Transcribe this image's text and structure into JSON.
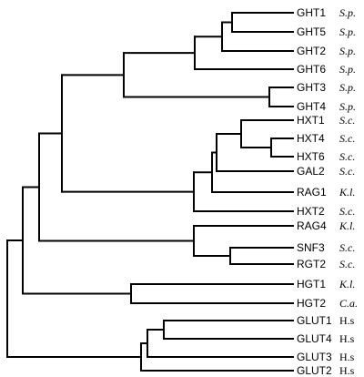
{
  "figure": {
    "type": "phylogenetic-tree"
  },
  "leaves": [
    {
      "gene": "GHT1",
      "species": "S.p.",
      "italic": true
    },
    {
      "gene": "GHT5",
      "species": "S.p.",
      "italic": true
    },
    {
      "gene": "GHT2",
      "species": "S.p.",
      "italic": true
    },
    {
      "gene": "GHT6",
      "species": "S.p.",
      "italic": true
    },
    {
      "gene": "GHT3",
      "species": "S.p.",
      "italic": true
    },
    {
      "gene": "GHT4",
      "species": "S.p.",
      "italic": true
    },
    {
      "gene": "HXT1",
      "species": "S.c.",
      "italic": true
    },
    {
      "gene": "HXT4",
      "species": "S.c.",
      "italic": true
    },
    {
      "gene": "HXT6",
      "species": "S.c.",
      "italic": true
    },
    {
      "gene": "GAL2",
      "species": "S.c.",
      "italic": true
    },
    {
      "gene": "RAG1",
      "species": "K.l.",
      "italic": true
    },
    {
      "gene": "HXT2",
      "species": "S.c.",
      "italic": true
    },
    {
      "gene": "RAG4",
      "species": "K.l.",
      "italic": true
    },
    {
      "gene": "SNF3",
      "species": "S.c.",
      "italic": true
    },
    {
      "gene": "RGT2",
      "species": "S.c.",
      "italic": true
    },
    {
      "gene": "HGT1",
      "species": "K.l.",
      "italic": true
    },
    {
      "gene": "HGT2",
      "species": "C.a.",
      "italic": true
    },
    {
      "gene": "GLUT1",
      "species": "H.s",
      "italic": false
    },
    {
      "gene": "GLUT4",
      "species": "H.s",
      "italic": false
    },
    {
      "gene": "GLUT3",
      "species": "H.s",
      "italic": false
    },
    {
      "gene": "GLUT2",
      "species": "H.s",
      "italic": false
    }
  ],
  "colors": {
    "line": "#000000",
    "background": "#ffffff"
  }
}
